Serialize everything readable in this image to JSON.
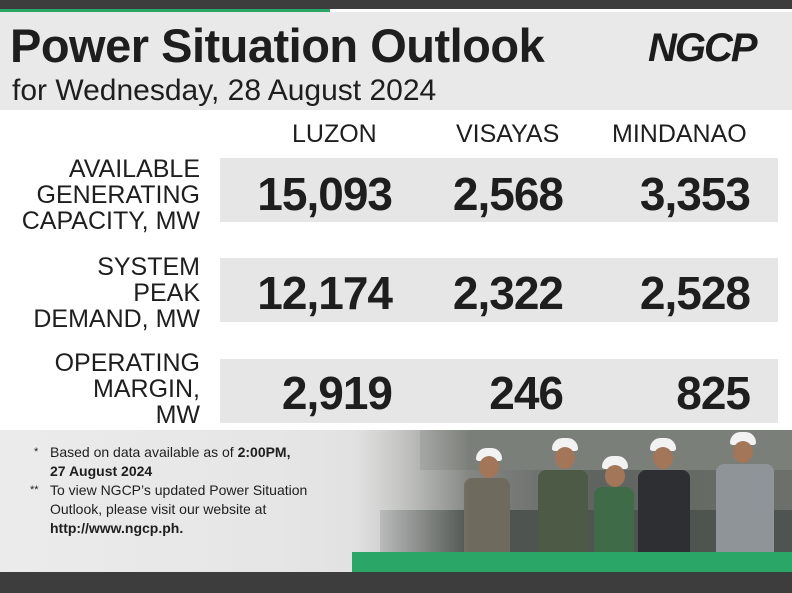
{
  "header": {
    "title": "Power Situation Outlook",
    "subtitle": "for Wednesday, 28 August 2024",
    "logo_text": "NGCP"
  },
  "columns": [
    "LUZON",
    "VISAYAS",
    "MINDANAO"
  ],
  "rows": [
    {
      "label_lines": [
        "AVAILABLE",
        "GENERATING",
        "CAPACITY, MW"
      ],
      "values": [
        "15,093",
        "2,568",
        "3,353"
      ]
    },
    {
      "label_lines": [
        "SYSTEM",
        "PEAK",
        "DEMAND, MW"
      ],
      "values": [
        "12,174",
        "2,322",
        "2,528"
      ]
    },
    {
      "label_lines": [
        "OPERATING",
        "MARGIN,",
        "MW"
      ],
      "values": [
        "2,919",
        "246",
        "825"
      ]
    }
  ],
  "footnotes": {
    "note1_mark": "*",
    "note1_text": "Based on data available as of ",
    "note1_bold_time": "2:00PM,",
    "note1_bold_date": "27 August 2024",
    "note2_mark": "**",
    "note2_line1": "To view NGCP’s updated Power Situation",
    "note2_line2": "Outlook, please visit our website at",
    "note2_url": "http://www.ngcp.ph."
  },
  "colors": {
    "brand_green": "#2aa766",
    "dark_bar": "#3d3d3d",
    "band_gray": "#e6e6e6"
  }
}
